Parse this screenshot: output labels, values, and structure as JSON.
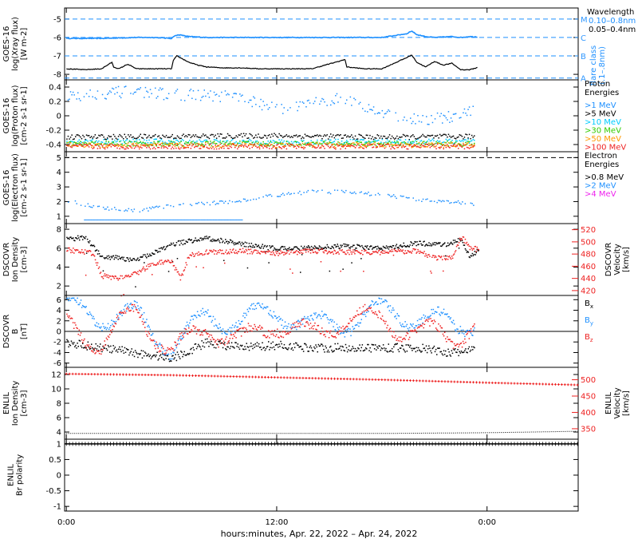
{
  "x_axis": {
    "caption": "hours:minutes, Apr. 22, 2022 – Apr. 24, 2022",
    "ticks": [
      {
        "label": "0:00",
        "hours": 0
      },
      {
        "label": "12:00",
        "hours": 12
      },
      {
        "label": "0:00",
        "hours": 24
      }
    ],
    "range_hours": [
      -0.1,
      29.2
    ]
  },
  "panels": [
    {
      "id": "xray",
      "ylabel_lines": [
        "GOES-16",
        "log(Xray flux)",
        "[W m-2]"
      ],
      "yticks": [
        -5,
        -6,
        -7,
        -8
      ],
      "ylim": [
        -8.3,
        -4.4
      ],
      "right_labels": [
        {
          "text": "M",
          "value": -5,
          "color": "#3399ff"
        },
        {
          "text": "C",
          "value": -6,
          "color": "#3399ff"
        },
        {
          "text": "B",
          "value": -7,
          "color": "#3399ff"
        },
        {
          "text": "A",
          "value": -8.2,
          "color": "#3399ff"
        }
      ],
      "legend_title": "Wavelength",
      "legend": [
        {
          "text": "0.10–0.8nm",
          "color": "#1e90ff"
        },
        {
          "text": "0.05–0.4nm",
          "color": "#000000"
        }
      ],
      "flare_class_label": [
        "flare class",
        "(.1–.8nm)"
      ]
    },
    {
      "id": "proton",
      "ylabel_lines": [
        "GOES-16",
        "log(Proton flux)",
        "[cm-2 s-1 sr-1]"
      ],
      "yticks": [
        0.4,
        0.2,
        0.0,
        -0.2,
        -0.4
      ],
      "ylim": [
        -0.5,
        0.5
      ],
      "legend_title_lines": [
        "Proton",
        "Energies"
      ],
      "legend": [
        {
          "text": ">1 MeV",
          "color": "#1e90ff"
        },
        {
          "text": ">5 MeV",
          "color": "#000000"
        },
        {
          "text": ">10 MeV",
          "color": "#00ccff"
        },
        {
          "text": ">30 MeV",
          "color": "#33cc00"
        },
        {
          "text": ">50 MeV",
          "color": "#ff9900"
        },
        {
          "text": ">100 MeV",
          "color": "#ee2222"
        }
      ]
    },
    {
      "id": "electron",
      "ylabel_lines": [
        "GOES-16",
        "log(Electron flux)",
        "[cm-2 s-1 sr-1]"
      ],
      "yticks": [
        5,
        4,
        3,
        2,
        1
      ],
      "ylim": [
        0.5,
        5.4
      ],
      "legend_title_lines": [
        "Electron",
        "Energies"
      ],
      "legend": [
        {
          "text": ">0.8 MeV",
          "color": "#000000"
        },
        {
          "text": ">2 MeV",
          "color": "#1e90ff"
        },
        {
          "text": ">4 MeV",
          "color": "#ee22ee"
        }
      ]
    },
    {
      "id": "dscovr_plasma",
      "ylabel_lines": [
        "DSCOVR",
        "Ion Density",
        "[cm-3]"
      ],
      "yticks": [
        8,
        6,
        4,
        2
      ],
      "ylim": [
        1.0,
        8.6
      ],
      "right_ylabel_lines": [
        "DSCOVR",
        "Velocity",
        "[km/s]"
      ],
      "right_yticks": [
        520,
        500,
        480,
        460,
        440,
        420
      ],
      "right_ylim": [
        412,
        530
      ]
    },
    {
      "id": "dscovr_mag",
      "ylabel_lines": [
        "DSCOVR",
        "B",
        "[nT]"
      ],
      "yticks": [
        6,
        4,
        2,
        0,
        -2,
        -4,
        -6
      ],
      "ylim": [
        -6.8,
        6.8
      ],
      "legend": [
        {
          "text": "Bx",
          "color": "#000000"
        },
        {
          "text": "By",
          "color": "#1e90ff"
        },
        {
          "text": "Bz",
          "color": "#ee2222"
        }
      ]
    },
    {
      "id": "enlil_plasma",
      "ylabel_lines": [
        "ENLIL",
        "Ion Density",
        "[cm-3]"
      ],
      "yticks": [
        12,
        10,
        8,
        6,
        4
      ],
      "ylim": [
        3.0,
        13.0
      ],
      "right_ylabel_lines": [
        "ENLIL",
        "Velocity",
        "[km/s]"
      ],
      "right_yticks": [
        500,
        450,
        400,
        350
      ],
      "right_ylim": [
        318,
        538
      ]
    },
    {
      "id": "enlil_polarity",
      "ylabel_lines": [
        "ENLIL",
        "Br polarity"
      ],
      "yticks": [
        1.0,
        0.5,
        0.0,
        -0.5,
        -1.0
      ],
      "ylim": [
        -1.15,
        1.15
      ]
    }
  ],
  "colors": {
    "blue": "#1e90ff",
    "red": "#ee2222",
    "green": "#33cc00",
    "orange": "#ff9900",
    "cyan": "#00ccff",
    "magenta": "#ee22ee",
    "axis": "#000000"
  },
  "chart_data": [
    {
      "type": "line",
      "panel": "xray",
      "x_unit": "hours since Apr 22 00:00",
      "series": [
        {
          "name": "0.10–0.8nm",
          "x": [
            0,
            2,
            4,
            5,
            6,
            6.1,
            6.4,
            7,
            8,
            10,
            12,
            14,
            16,
            18,
            19.4,
            19.7,
            20,
            20.5,
            21,
            22,
            22.5,
            23,
            24
          ],
          "values": [
            -6.05,
            -6.05,
            -6.0,
            -6.0,
            -6.05,
            -5.95,
            -5.85,
            -5.95,
            -6.0,
            -6.0,
            -6.0,
            -6.0,
            -6.0,
            -6.0,
            -5.8,
            -5.65,
            -5.85,
            -5.95,
            -6.0,
            -5.95,
            -6.0,
            -5.95,
            -6.0
          ]
        },
        {
          "name": "0.05–0.4nm",
          "x": [
            0,
            1,
            2,
            2.6,
            2.7,
            3,
            3.5,
            4,
            5,
            6,
            6.1,
            6.3,
            7,
            7.5,
            8,
            9,
            10,
            11,
            12,
            14,
            15.9,
            16,
            17,
            18,
            19.4,
            19.7,
            20,
            20.5,
            21,
            21.5,
            22,
            22.5,
            23,
            24
          ],
          "values": [
            -7.7,
            -7.75,
            -7.7,
            -7.35,
            -7.6,
            -7.7,
            -7.45,
            -7.7,
            -7.7,
            -7.7,
            -7.25,
            -7.0,
            -7.35,
            -7.5,
            -7.6,
            -7.65,
            -7.65,
            -7.7,
            -7.7,
            -7.7,
            -7.2,
            -7.6,
            -7.7,
            -7.7,
            -7.1,
            -6.95,
            -7.35,
            -7.6,
            -7.3,
            -7.5,
            -7.4,
            -7.75,
            -7.75,
            -7.5
          ]
        }
      ],
      "hlines": [
        -5,
        -6,
        -7,
        -8.2
      ]
    },
    {
      "type": "scatter",
      "panel": "proton",
      "series": [
        {
          "name": ">1 MeV",
          "x": [
            0,
            2,
            4,
            6,
            8,
            10,
            12,
            14,
            16,
            18,
            20,
            22,
            24
          ],
          "values": [
            0.28,
            0.32,
            0.35,
            0.3,
            0.3,
            0.25,
            0.1,
            0.2,
            0.25,
            0.05,
            -0.05,
            0.0,
            0.15
          ]
        },
        {
          "name": ">5 MeV",
          "x": [
            0,
            6,
            12,
            18,
            24
          ],
          "values": [
            -0.29,
            -0.28,
            -0.27,
            -0.29,
            -0.28
          ]
        },
        {
          "name": ">10 MeV",
          "x": [
            0,
            6,
            12,
            18,
            24
          ],
          "values": [
            -0.35,
            -0.35,
            -0.36,
            -0.35,
            -0.35
          ]
        },
        {
          "name": ">30 MeV",
          "x": [
            0,
            6,
            12,
            18,
            24
          ],
          "values": [
            -0.38,
            -0.38,
            -0.38,
            -0.38,
            -0.38
          ]
        },
        {
          "name": ">50 MeV",
          "x": [
            0,
            6,
            12,
            18,
            24
          ],
          "values": [
            -0.4,
            -0.4,
            -0.4,
            -0.4,
            -0.4
          ]
        },
        {
          "name": ">100 MeV",
          "x": [
            0,
            6,
            12,
            18,
            24
          ],
          "values": [
            -0.42,
            -0.42,
            -0.42,
            -0.42,
            -0.42
          ]
        }
      ]
    },
    {
      "type": "scatter",
      "panel": "electron",
      "series": [
        {
          "name": ">0.8 MeV",
          "x": [
            0
          ],
          "values": [
            null
          ]
        },
        {
          "name": ">2 MeV",
          "x": [
            0,
            2,
            4,
            6,
            8,
            10,
            12,
            14,
            16,
            18,
            20,
            22,
            24
          ],
          "values": [
            2.1,
            1.6,
            1.4,
            1.8,
            1.9,
            2.1,
            2.5,
            2.7,
            2.7,
            2.5,
            2.2,
            2.0,
            1.8
          ]
        },
        {
          "name": ">4 MeV",
          "x": [
            0
          ],
          "values": [
            null
          ]
        }
      ],
      "hline": 5
    },
    {
      "type": "scatter",
      "panel": "dscovr_plasma",
      "series": [
        {
          "name": "Ion Density",
          "axis": "left",
          "x": [
            0,
            1,
            2,
            3,
            4,
            6,
            8,
            10,
            12,
            14,
            16,
            18,
            20,
            21.5,
            22.5,
            23,
            24
          ],
          "values": [
            7,
            7.2,
            5.2,
            5.0,
            4.8,
            6.5,
            7.1,
            6.5,
            6.0,
            6.1,
            6.3,
            6.0,
            6.6,
            6.4,
            7.0,
            5.2,
            6.5
          ]
        },
        {
          "name": "Velocity",
          "axis": "right",
          "x": [
            0,
            1.5,
            2,
            3,
            4,
            5,
            6,
            6.5,
            7,
            8,
            10,
            12,
            14,
            16,
            18,
            20,
            21,
            22,
            22.5,
            23,
            23.5,
            24
          ],
          "values": [
            488,
            482,
            445,
            442,
            450,
            466,
            468,
            440,
            480,
            484,
            486,
            482,
            486,
            484,
            484,
            486,
            474,
            474,
            510,
            492,
            488,
            494
          ]
        }
      ]
    },
    {
      "type": "scatter",
      "panel": "dscovr_mag",
      "series": [
        {
          "name": "Bx",
          "x": [
            0,
            2,
            4,
            6,
            8,
            10,
            12,
            14,
            16,
            18,
            20,
            22,
            24
          ],
          "values": [
            -2,
            -3,
            -4,
            -5,
            -2,
            -3,
            -2.5,
            -3,
            -3,
            -3,
            -3,
            -4,
            -3
          ]
        },
        {
          "name": "By",
          "x": [
            0,
            2,
            4,
            6,
            8,
            10,
            12,
            14,
            16,
            18,
            20,
            22,
            24
          ],
          "values": [
            4.5,
            3,
            3,
            -3,
            3,
            2,
            4,
            1,
            2,
            4,
            3,
            1,
            3
          ]
        },
        {
          "name": "Bz",
          "x": [
            0,
            2,
            4,
            6,
            8,
            10,
            12,
            14,
            16,
            18,
            20,
            22,
            24
          ],
          "values": [
            1,
            -2,
            4,
            -4,
            1,
            -2,
            2,
            -1,
            3,
            2,
            0,
            -1,
            3
          ]
        }
      ],
      "hline": 0
    },
    {
      "type": "line",
      "panel": "enlil_plasma",
      "series": [
        {
          "name": "Ion Density",
          "axis": "left",
          "x": [
            0,
            6,
            12,
            18,
            24,
            29.2
          ],
          "values": [
            3.8,
            3.8,
            3.8,
            3.8,
            3.9,
            4.1
          ]
        },
        {
          "name": "Velocity",
          "axis": "right",
          "x": [
            0,
            6,
            12,
            18,
            24,
            29.2
          ],
          "values": [
            518,
            514,
            507,
            500,
            491,
            484
          ]
        }
      ]
    },
    {
      "type": "line",
      "panel": "enlil_polarity",
      "series": [
        {
          "name": "Br polarity",
          "x": [
            -0.1,
            29.2
          ],
          "values": [
            1.0,
            1.0
          ]
        }
      ]
    }
  ]
}
